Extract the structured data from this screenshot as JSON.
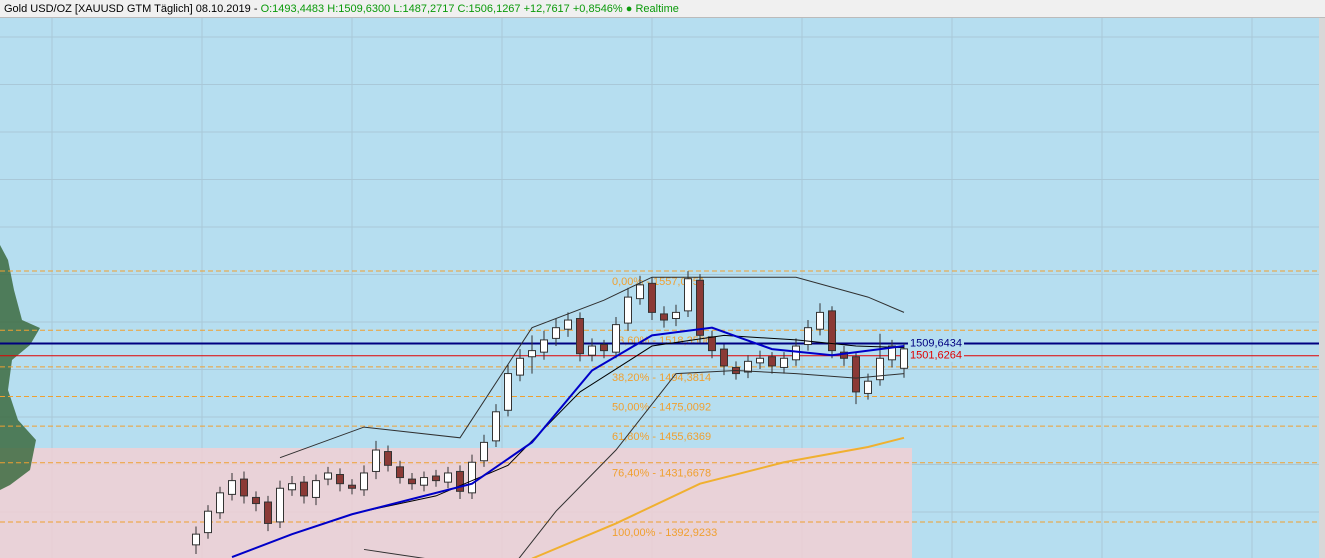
{
  "header": {
    "instrument": "Gold USD/OZ [XAUUSD GTM Täglich] 08.10.2019 -",
    "open": "O:1493,4483",
    "high": "H:1509,6300",
    "low": "L:1487,2717",
    "close": "C:1506,1267",
    "change": "+12,7617",
    "change_pct": "+0,8546%",
    "status": "● Realtime"
  },
  "chart_data": {
    "type": "candlestick",
    "ylim": [
      1369.4,
      1722.5
    ],
    "grid": true,
    "up_color": "#ffffff",
    "down_color": "#8b3a36",
    "open": [
      1378,
      1386,
      1399,
      1411,
      1421,
      1409,
      1406,
      1393,
      1414,
      1419,
      1409,
      1421,
      1424,
      1417,
      1414,
      1426,
      1439,
      1429,
      1421,
      1417,
      1423,
      1419,
      1426,
      1412,
      1433,
      1446,
      1466,
      1489,
      1501,
      1504,
      1513,
      1519,
      1526,
      1502,
      1509,
      1504,
      1523,
      1539,
      1549,
      1529,
      1526,
      1531,
      1551,
      1514,
      1506,
      1494,
      1491,
      1497,
      1501,
      1494,
      1499,
      1509,
      1519,
      1531,
      1504,
      1501,
      1477,
      1486,
      1499,
      1493.4483
    ],
    "high": [
      1390,
      1404,
      1416,
      1425,
      1426,
      1413,
      1410,
      1420,
      1423,
      1423,
      1424,
      1429,
      1428,
      1421,
      1430,
      1446,
      1443,
      1433,
      1425,
      1426,
      1427,
      1429,
      1430,
      1437,
      1450,
      1470,
      1496,
      1506,
      1515,
      1518,
      1526,
      1530,
      1530,
      1513,
      1512,
      1527,
      1546,
      1554,
      1553,
      1534,
      1535,
      1557,
      1555,
      1518,
      1509,
      1498,
      1502,
      1505,
      1504,
      1504,
      1513,
      1525,
      1536,
      1534,
      1508,
      1504,
      1490,
      1516,
      1512,
      1509.63
    ],
    "low": [
      1372,
      1382,
      1395,
      1407,
      1405,
      1400,
      1387,
      1389,
      1410,
      1405,
      1404,
      1417,
      1413,
      1411,
      1410,
      1421,
      1426,
      1418,
      1414,
      1413,
      1416,
      1415,
      1408,
      1408,
      1429,
      1442,
      1462,
      1485,
      1490,
      1499,
      1508,
      1514,
      1498,
      1498,
      1500,
      1500,
      1518,
      1535,
      1525,
      1520,
      1521,
      1527,
      1510,
      1500,
      1489,
      1486,
      1487,
      1493,
      1490,
      1490,
      1495,
      1505,
      1515,
      1500,
      1495,
      1470,
      1473,
      1482,
      1494,
      1487.2717
    ],
    "close": [
      1385,
      1400,
      1412,
      1420,
      1410,
      1405,
      1392,
      1415,
      1418,
      1410,
      1420,
      1425,
      1418,
      1415,
      1425,
      1440,
      1430,
      1422,
      1418,
      1422,
      1420,
      1425,
      1413,
      1432,
      1445,
      1465,
      1490,
      1500,
      1505,
      1512,
      1520,
      1525,
      1503,
      1508,
      1505,
      1522,
      1540,
      1548,
      1530,
      1525,
      1530,
      1552,
      1515,
      1505,
      1495,
      1490,
      1498,
      1500,
      1495,
      1500,
      1508,
      1520,
      1530,
      1505,
      1500,
      1478,
      1485,
      1500,
      1508,
      1506.1267
    ],
    "lines": [
      {
        "color": "#f0b030",
        "width": 2,
        "x": [
          28,
          35,
          42,
          49,
          56,
          59
        ],
        "values": [
          1369,
          1392,
          1418,
          1432,
          1442,
          1448
        ]
      },
      {
        "color": "#303030",
        "width": 1,
        "x": [
          7,
          14,
          22,
          28,
          34,
          38,
          44,
          50,
          56,
          59
        ],
        "values": [
          1435,
          1455,
          1448,
          1520,
          1538,
          1553,
          1553,
          1553,
          1540,
          1530
        ]
      },
      {
        "color": "#303030",
        "width": 1,
        "x": [
          14,
          20,
          26,
          30,
          35,
          40,
          45,
          50,
          55,
          59
        ],
        "values": [
          1375,
          1368,
          1360,
          1400,
          1440,
          1490,
          1492,
          1490,
          1487,
          1490
        ]
      },
      {
        "color": "#000000",
        "width": 1,
        "x": [
          14,
          20,
          26,
          32,
          38,
          44,
          50,
          55,
          59
        ],
        "values": [
          1400,
          1410,
          1430,
          1478,
          1508,
          1515,
          1512,
          1508,
          1507
        ]
      },
      {
        "color": "#0000c8",
        "width": 2,
        "x": [
          3,
          8,
          13,
          18,
          23,
          28,
          33,
          38,
          43,
          48,
          53,
          59
        ],
        "values": [
          1370,
          1385,
          1398,
          1408,
          1418,
          1445,
          1492,
          1515,
          1520,
          1506,
          1502,
          1508
        ]
      }
    ],
    "levels": [
      {
        "value": 1509.6434,
        "label": "1509,6434",
        "color": "#000080"
      },
      {
        "value": 1501.6264,
        "label": "1501,6264",
        "color": "#e00000"
      }
    ],
    "fibonacci": {
      "color": "#f0a030",
      "levels": [
        {
          "value": 1557.0951,
          "label": "0,00% - 1557,0951"
        },
        {
          "value": 1518.3506,
          "label": "23,60% - 1518,3506"
        },
        {
          "value": 1494.3814,
          "label": "38,20% - 1494,3814"
        },
        {
          "value": 1475.0092,
          "label": "50,00% - 1475,0092"
        },
        {
          "value": 1455.6369,
          "label": "61,80% - 1455,6369"
        },
        {
          "value": 1431.6678,
          "label": "76,40% - 1431,6678"
        },
        {
          "value": 1392.9233,
          "label": "100,00% - 1392,9233"
        }
      ]
    }
  }
}
